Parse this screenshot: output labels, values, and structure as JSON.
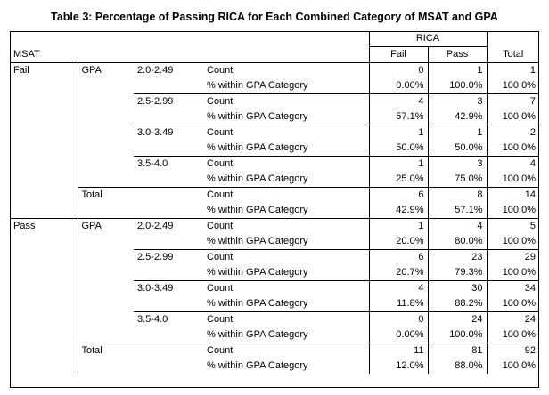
{
  "title": "Table 3:  Percentage of Passing RICA for Each Combined Category of MSAT and GPA",
  "header": {
    "msat": "MSAT",
    "rica": "RICA",
    "fail": "Fail",
    "pass": "Pass",
    "total": "Total"
  },
  "labels": {
    "gpa": "GPA",
    "count": "Count",
    "within": "% within GPA Category",
    "total": "Total"
  },
  "groups": [
    {
      "msat": "Fail",
      "rows": [
        {
          "gpa": "2.0-2.49",
          "count": [
            "0",
            "1",
            "1"
          ],
          "pct": [
            "0.00%",
            "100.0%",
            "100.0%"
          ]
        },
        {
          "gpa": "2.5-2.99",
          "count": [
            "4",
            "3",
            "7"
          ],
          "pct": [
            "57.1%",
            "42.9%",
            "100.0%"
          ]
        },
        {
          "gpa": "3.0-3.49",
          "count": [
            "1",
            "1",
            "2"
          ],
          "pct": [
            "50.0%",
            "50.0%",
            "100.0%"
          ]
        },
        {
          "gpa": "3.5-4.0",
          "count": [
            "1",
            "3",
            "4"
          ],
          "pct": [
            "25.0%",
            "75.0%",
            "100.0%"
          ]
        }
      ],
      "total": {
        "count": [
          "6",
          "8",
          "14"
        ],
        "pct": [
          "42.9%",
          "57.1%",
          "100.0%"
        ]
      }
    },
    {
      "msat": "Pass",
      "rows": [
        {
          "gpa": "2.0-2.49",
          "count": [
            "1",
            "4",
            "5"
          ],
          "pct": [
            "20.0%",
            "80.0%",
            "100.0%"
          ]
        },
        {
          "gpa": "2.5-2.99",
          "count": [
            "6",
            "23",
            "29"
          ],
          "pct": [
            "20.7%",
            "79.3%",
            "100.0%"
          ]
        },
        {
          "gpa": "3.0-3.49",
          "count": [
            "4",
            "30",
            "34"
          ],
          "pct": [
            "11.8%",
            "88.2%",
            "100.0%"
          ]
        },
        {
          "gpa": "3.5-4.0",
          "count": [
            "0",
            "24",
            "24"
          ],
          "pct": [
            "0.00%",
            "100.0%",
            "100.0%"
          ]
        }
      ],
      "total": {
        "count": [
          "11",
          "81",
          "92"
        ],
        "pct": [
          "12.0%",
          "88.0%",
          "100.0%"
        ]
      }
    }
  ]
}
